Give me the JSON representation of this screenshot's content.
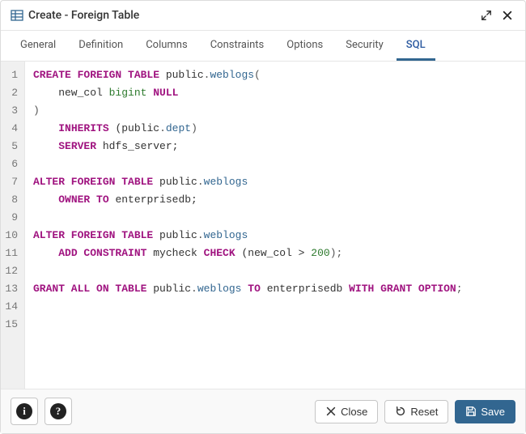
{
  "dialog": {
    "title": "Create - Foreign Table"
  },
  "tabs": [
    {
      "label": "General",
      "active": false
    },
    {
      "label": "Definition",
      "active": false
    },
    {
      "label": "Columns",
      "active": false
    },
    {
      "label": "Constraints",
      "active": false
    },
    {
      "label": "Options",
      "active": false
    },
    {
      "label": "Security",
      "active": false
    },
    {
      "label": "SQL",
      "active": true
    }
  ],
  "sql": {
    "line_count": 15,
    "lines": [
      [
        {
          "t": "CREATE FOREIGN TABLE",
          "c": "kw"
        },
        {
          "t": " public",
          "c": "plain"
        },
        {
          "t": ".",
          "c": "punct"
        },
        {
          "t": "weblogs",
          "c": "ident"
        },
        {
          "t": "(",
          "c": "punct"
        }
      ],
      [
        {
          "t": "    new_col ",
          "c": "plain"
        },
        {
          "t": "bigint",
          "c": "type"
        },
        {
          "t": " ",
          "c": "plain"
        },
        {
          "t": "NULL",
          "c": "kw"
        }
      ],
      [
        {
          "t": ")",
          "c": "punct"
        }
      ],
      [
        {
          "t": "    ",
          "c": "plain"
        },
        {
          "t": "INHERITS",
          "c": "kw"
        },
        {
          "t": " (public",
          "c": "plain"
        },
        {
          "t": ".",
          "c": "punct"
        },
        {
          "t": "dept",
          "c": "ident"
        },
        {
          "t": ")",
          "c": "punct"
        }
      ],
      [
        {
          "t": "    ",
          "c": "plain"
        },
        {
          "t": "SERVER",
          "c": "kw"
        },
        {
          "t": " hdfs_server;",
          "c": "plain"
        }
      ],
      [],
      [
        {
          "t": "ALTER FOREIGN TABLE",
          "c": "kw"
        },
        {
          "t": " public",
          "c": "plain"
        },
        {
          "t": ".",
          "c": "punct"
        },
        {
          "t": "weblogs",
          "c": "ident"
        }
      ],
      [
        {
          "t": "    ",
          "c": "plain"
        },
        {
          "t": "OWNER TO",
          "c": "kw"
        },
        {
          "t": " enterprisedb;",
          "c": "plain"
        }
      ],
      [],
      [
        {
          "t": "ALTER FOREIGN TABLE",
          "c": "kw"
        },
        {
          "t": " public",
          "c": "plain"
        },
        {
          "t": ".",
          "c": "punct"
        },
        {
          "t": "weblogs",
          "c": "ident"
        }
      ],
      [
        {
          "t": "    ",
          "c": "plain"
        },
        {
          "t": "ADD CONSTRAINT",
          "c": "kw"
        },
        {
          "t": " mycheck ",
          "c": "plain"
        },
        {
          "t": "CHECK",
          "c": "kw"
        },
        {
          "t": " (new_col > ",
          "c": "plain"
        },
        {
          "t": "200",
          "c": "num"
        },
        {
          "t": ");",
          "c": "punct"
        }
      ],
      [],
      [
        {
          "t": "GRANT ALL ON TABLE",
          "c": "kw"
        },
        {
          "t": " public",
          "c": "plain"
        },
        {
          "t": ".",
          "c": "punct"
        },
        {
          "t": "weblogs",
          "c": "ident"
        },
        {
          "t": " ",
          "c": "plain"
        },
        {
          "t": "TO",
          "c": "kw"
        },
        {
          "t": " enterprisedb ",
          "c": "plain"
        },
        {
          "t": "WITH GRANT OPTION",
          "c": "kw"
        },
        {
          "t": ";",
          "c": "punct"
        }
      ],
      [],
      []
    ]
  },
  "footer": {
    "close_label": "Close",
    "reset_label": "Reset",
    "save_label": "Save"
  },
  "colors": {
    "keyword": "#a01480",
    "identifier": "#326690",
    "type": "#2d7a2d",
    "number": "#2d7a2d",
    "punct": "#555555",
    "plain": "#333333",
    "gutter_bg": "#f0f0f0",
    "gutter_fg": "#777777",
    "border": "#e6e6e6",
    "primary": "#326690",
    "tab_active": "#326690"
  }
}
